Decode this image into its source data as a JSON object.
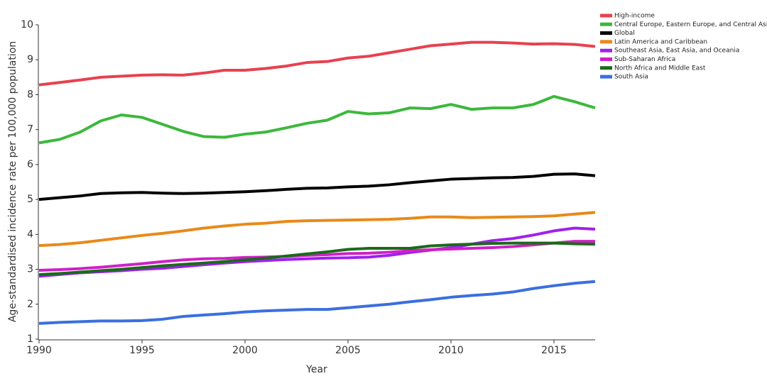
{
  "chart_data": {
    "type": "line",
    "x_label": "Year",
    "y_label": "Age-standardised incidence rate per 100,000 population",
    "x": [
      1990,
      1991,
      1992,
      1993,
      1994,
      1995,
      1996,
      1997,
      1998,
      1999,
      2000,
      2001,
      2002,
      2003,
      2004,
      2005,
      2006,
      2007,
      2008,
      2009,
      2010,
      2011,
      2012,
      2013,
      2014,
      2015,
      2016,
      2017
    ],
    "xlim": [
      1990,
      2017
    ],
    "xticks": [
      1990,
      1995,
      2000,
      2005,
      2010,
      2015
    ],
    "ylim": [
      1,
      10
    ],
    "yticks": [
      1,
      2,
      3,
      4,
      5,
      6,
      7,
      8,
      9,
      10
    ],
    "legend": "top-right",
    "series": [
      {
        "name": "High-income",
        "color": "#e8414f",
        "values": [
          8.28,
          8.35,
          8.42,
          8.5,
          8.53,
          8.56,
          8.57,
          8.56,
          8.62,
          8.7,
          8.7,
          8.75,
          8.82,
          8.92,
          8.95,
          9.05,
          9.1,
          9.2,
          9.3,
          9.4,
          9.45,
          9.5,
          9.5,
          9.48,
          9.45,
          9.46,
          9.44,
          9.38
        ]
      },
      {
        "name": "Central Europe, Eastern Europe, and Central Asia",
        "color": "#3cb83c",
        "values": [
          6.62,
          6.72,
          6.93,
          7.25,
          7.42,
          7.35,
          7.15,
          6.95,
          6.8,
          6.78,
          6.87,
          6.93,
          7.05,
          7.18,
          7.27,
          7.52,
          7.45,
          7.48,
          7.62,
          7.6,
          7.72,
          7.58,
          7.62,
          7.62,
          7.72,
          7.95,
          7.8,
          7.62
        ]
      },
      {
        "name": "Global",
        "color": "#000000",
        "values": [
          5.0,
          5.05,
          5.1,
          5.17,
          5.19,
          5.2,
          5.18,
          5.17,
          5.18,
          5.2,
          5.22,
          5.25,
          5.29,
          5.32,
          5.33,
          5.36,
          5.38,
          5.42,
          5.48,
          5.53,
          5.58,
          5.6,
          5.62,
          5.63,
          5.66,
          5.72,
          5.73,
          5.68
        ]
      },
      {
        "name": "Latin America and Caribbean",
        "color": "#e88a1a",
        "values": [
          3.68,
          3.71,
          3.76,
          3.83,
          3.9,
          3.97,
          4.03,
          4.1,
          4.18,
          4.24,
          4.29,
          4.32,
          4.37,
          4.39,
          4.4,
          4.41,
          4.42,
          4.43,
          4.46,
          4.5,
          4.5,
          4.48,
          4.49,
          4.5,
          4.51,
          4.53,
          4.58,
          4.63
        ]
      },
      {
        "name": "Southeast Asia, East Asia, and Oceania",
        "color": "#a020f0",
        "values": [
          2.8,
          2.85,
          2.9,
          2.93,
          2.96,
          3.0,
          3.03,
          3.08,
          3.13,
          3.18,
          3.22,
          3.25,
          3.28,
          3.3,
          3.32,
          3.33,
          3.35,
          3.4,
          3.48,
          3.55,
          3.62,
          3.72,
          3.82,
          3.88,
          3.98,
          4.1,
          4.18,
          4.15
        ]
      },
      {
        "name": "Sub-Saharan Africa",
        "color": "#d020c8",
        "values": [
          2.97,
          2.99,
          3.02,
          3.06,
          3.11,
          3.16,
          3.22,
          3.27,
          3.3,
          3.31,
          3.34,
          3.35,
          3.37,
          3.4,
          3.42,
          3.45,
          3.46,
          3.49,
          3.53,
          3.56,
          3.58,
          3.6,
          3.62,
          3.65,
          3.7,
          3.75,
          3.8,
          3.8
        ]
      },
      {
        "name": "North Africa and Middle East",
        "color": "#1a6b1a",
        "values": [
          2.85,
          2.88,
          2.92,
          2.96,
          3.0,
          3.05,
          3.1,
          3.14,
          3.18,
          3.22,
          3.27,
          3.32,
          3.38,
          3.44,
          3.5,
          3.57,
          3.6,
          3.6,
          3.6,
          3.67,
          3.7,
          3.72,
          3.74,
          3.75,
          3.75,
          3.75,
          3.73,
          3.72
        ]
      },
      {
        "name": "South Asia",
        "color": "#3a6fe0",
        "values": [
          1.45,
          1.48,
          1.5,
          1.52,
          1.52,
          1.53,
          1.57,
          1.65,
          1.69,
          1.73,
          1.78,
          1.81,
          1.83,
          1.85,
          1.85,
          1.9,
          1.95,
          2.0,
          2.07,
          2.13,
          2.2,
          2.25,
          2.29,
          2.35,
          2.45,
          2.53,
          2.6,
          2.65
        ]
      }
    ]
  }
}
